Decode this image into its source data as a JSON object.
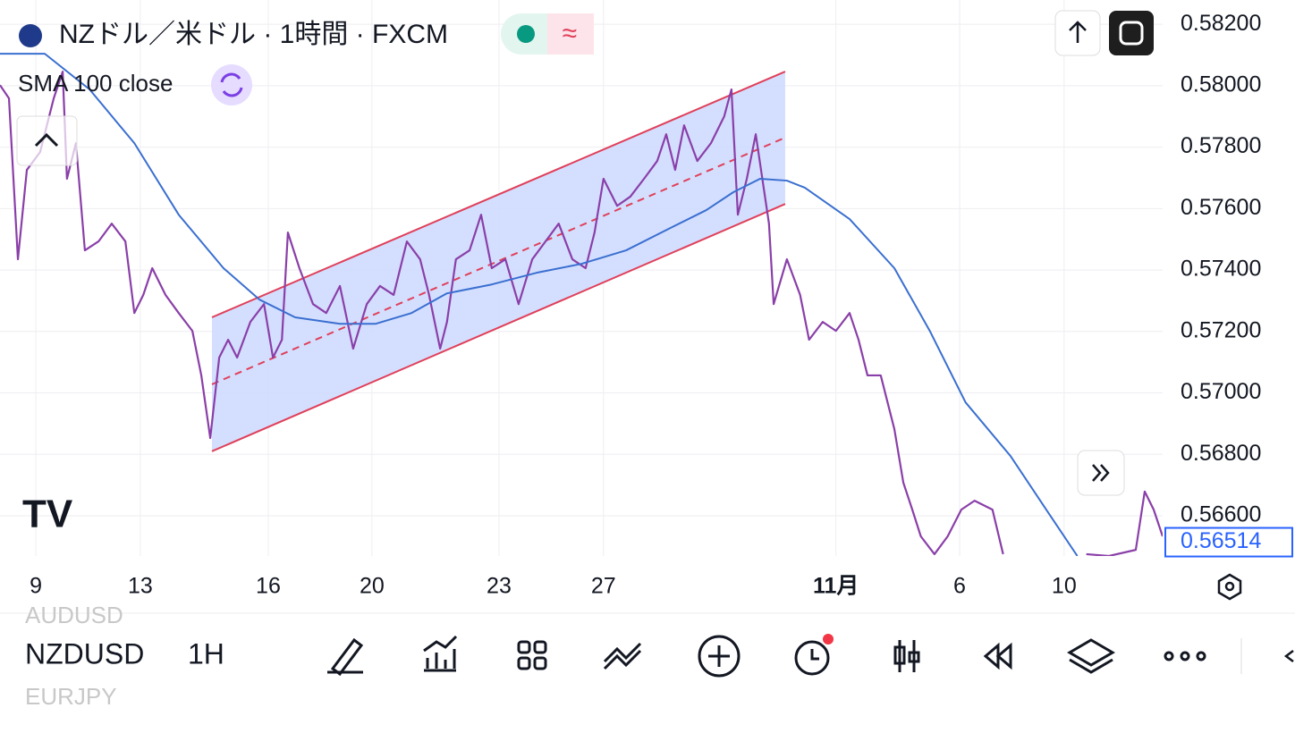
{
  "header": {
    "symbol_title": "NZドル／米ドル · 1時間 · FXCM",
    "badge": "≈",
    "indicator": "SMA 100 close"
  },
  "toolbar": {
    "symbol": "NZDUSD",
    "interval": "1H",
    "symbol_above": "AUDUSD",
    "symbol_below": "EURJPY"
  },
  "chart_data": {
    "type": "line",
    "grid": true,
    "xlim": [
      -0.84,
      26.42
    ],
    "xticks": [
      {
        "value": 0,
        "label": "9"
      },
      {
        "value": 2.45,
        "label": "13"
      },
      {
        "value": 5.45,
        "label": "16"
      },
      {
        "value": 7.88,
        "label": "20"
      },
      {
        "value": 10.86,
        "label": "23"
      },
      {
        "value": 13.31,
        "label": "27"
      },
      {
        "value": 18.76,
        "label": "11月"
      },
      {
        "value": 21.66,
        "label": "6"
      },
      {
        "value": 24.11,
        "label": "10"
      }
    ],
    "ylim": [
      0.56469,
      0.58279
    ],
    "yticks": [
      {
        "value": 0.582,
        "label": "0.58200"
      },
      {
        "value": 0.58,
        "label": "0.58000"
      },
      {
        "value": 0.578,
        "label": "0.57800"
      },
      {
        "value": 0.576,
        "label": "0.57600"
      },
      {
        "value": 0.574,
        "label": "0.57400"
      },
      {
        "value": 0.572,
        "label": "0.57200"
      },
      {
        "value": 0.57,
        "label": "0.57000"
      },
      {
        "value": 0.568,
        "label": "0.56800"
      },
      {
        "value": 0.566,
        "label": "0.56600"
      }
    ],
    "last_price": 0.56514,
    "series": [
      {
        "color": "#8a3fa8",
        "x": [
          -0.84,
          -0.63,
          -0.42,
          -0.21,
          0.1,
          0.42,
          0.63,
          0.73,
          0.94,
          1.15,
          1.47,
          1.78,
          2.1,
          2.31,
          2.52,
          2.73,
          3.04,
          3.35,
          3.67,
          3.88,
          4.09,
          4.3,
          4.51,
          4.72,
          5.03,
          5.35,
          5.56,
          5.77,
          5.91,
          6.18,
          6.5,
          6.81,
          7.13,
          7.44,
          7.76,
          8.07,
          8.39,
          8.7,
          9.01,
          9.22,
          9.48,
          9.64,
          9.85,
          10.17,
          10.44,
          10.69,
          11.01,
          11.32,
          11.64,
          11.95,
          12.26,
          12.58,
          12.89,
          13.1,
          13.31,
          13.63,
          13.94,
          14.26,
          14.57,
          14.78,
          14.99,
          15.2,
          15.51,
          15.83,
          16.14,
          16.31,
          16.46,
          16.67,
          16.88,
          17.19,
          17.3,
          17.61,
          17.92,
          18.13,
          18.45,
          18.76,
          19.08,
          19.29,
          19.5,
          19.81,
          20.13,
          20.34,
          20.55,
          20.75,
          21.07,
          21.38,
          21.7,
          22.01,
          22.43,
          22.68,
          23.6,
          24.63,
          25.16,
          25.79,
          26.0,
          26.21,
          26.42
        ],
        "values": [
          0.58002,
          0.57959,
          0.57435,
          0.57726,
          0.57784,
          0.57959,
          0.58046,
          0.57697,
          0.57813,
          0.57464,
          0.57493,
          0.57551,
          0.57493,
          0.5726,
          0.57319,
          0.57406,
          0.57319,
          0.5726,
          0.57202,
          0.57057,
          0.56853,
          0.57115,
          0.57173,
          0.57115,
          0.57231,
          0.57289,
          0.57115,
          0.57173,
          0.57522,
          0.57406,
          0.57289,
          0.5726,
          0.57348,
          0.57144,
          0.57289,
          0.57348,
          0.57319,
          0.57493,
          0.57435,
          0.57319,
          0.57144,
          0.57231,
          0.57435,
          0.57464,
          0.5758,
          0.57406,
          0.57435,
          0.57289,
          0.57435,
          0.57493,
          0.57551,
          0.57435,
          0.57406,
          0.57522,
          0.57697,
          0.57609,
          0.57639,
          0.57697,
          0.57755,
          0.57842,
          0.57726,
          0.57871,
          0.57755,
          0.57813,
          0.579,
          0.57988,
          0.5758,
          0.57697,
          0.57842,
          0.57551,
          0.57289,
          0.57435,
          0.57319,
          0.57173,
          0.57231,
          0.57202,
          0.5726,
          0.57173,
          0.57057,
          0.57057,
          0.56882,
          0.56708,
          0.5662,
          0.56533,
          0.56475,
          0.56533,
          0.5662,
          0.56649,
          0.5662,
          0.56475,
          null,
          0.56475,
          0.56469,
          0.56489,
          0.56679,
          0.5662,
          0.56533
        ]
      },
      {
        "name": "SMA 100 close",
        "color": "#3a6fd0",
        "x": [
          -0.84,
          0.21,
          1.26,
          2.31,
          3.35,
          4.4,
          5.24,
          6.08,
          7.13,
          7.97,
          8.81,
          9.64,
          10.69,
          11.74,
          12.79,
          13.84,
          14.88,
          15.72,
          16.35,
          16.98,
          17.61,
          18.03,
          19.08,
          20.13,
          20.96,
          21.8,
          22.85,
          23.69,
          24.42
        ],
        "values": [
          0.58104,
          0.58104,
          0.57988,
          0.57813,
          0.5758,
          0.57406,
          0.57304,
          0.57246,
          0.57225,
          0.57225,
          0.5726,
          0.57324,
          0.57353,
          0.57391,
          0.5742,
          0.57464,
          0.57537,
          0.57595,
          0.57653,
          0.57697,
          0.57691,
          0.57668,
          0.57566,
          0.57406,
          0.57202,
          0.56969,
          0.56795,
          0.5662,
          0.56469
        ]
      }
    ],
    "channel": {
      "color": "#e0405a",
      "fill": "#cdd9ff",
      "x": [
        4.13,
        17.57
      ],
      "upper": [
        0.57246,
        0.58046
      ],
      "middle": [
        0.57028,
        0.57831
      ],
      "lower": [
        0.5681,
        0.57615
      ]
    }
  }
}
